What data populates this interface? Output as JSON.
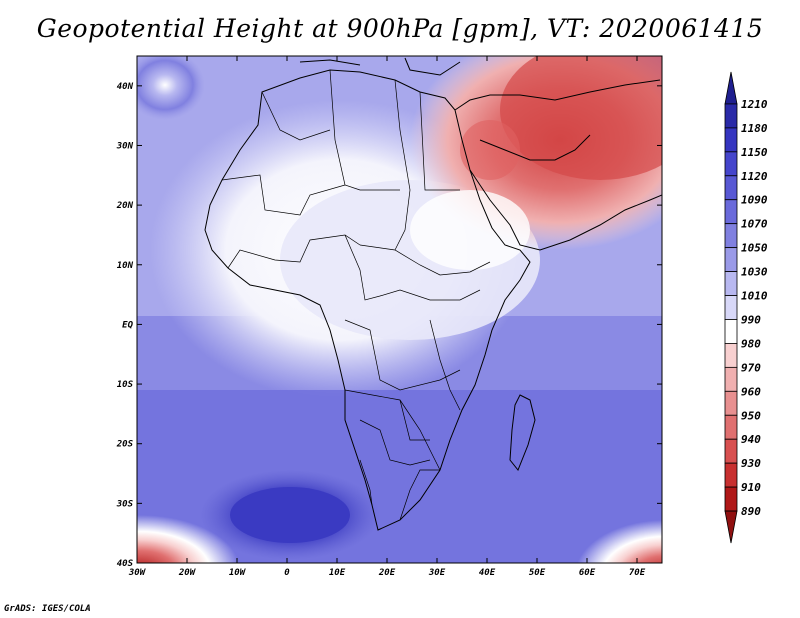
{
  "title": "Geopotential Height at 900hPa [gpm], VT: 2020061415",
  "credit": "GrADS: IGES/COLA",
  "map": {
    "lat_labels": [
      "40N",
      "30N",
      "20N",
      "10N",
      "EQ",
      "10S",
      "20S",
      "30S",
      "40S"
    ],
    "lon_labels": [
      "30W",
      "20W",
      "10W",
      "0",
      "10E",
      "20E",
      "30E",
      "40E",
      "50E",
      "60E",
      "70E"
    ],
    "lat_range": [
      -40,
      45
    ],
    "lon_range": [
      -30,
      75
    ]
  },
  "colorbar": {
    "labels": [
      "1210",
      "1180",
      "1150",
      "1120",
      "1090",
      "1070",
      "1050",
      "1030",
      "1010",
      "990",
      "980",
      "970",
      "960",
      "950",
      "940",
      "930",
      "910",
      "890"
    ],
    "colors": [
      "#1f1f8f",
      "#2a2aa8",
      "#3535c0",
      "#4545cc",
      "#5858d4",
      "#6a6adb",
      "#8080e0",
      "#9a9ae8",
      "#b8b8f0",
      "#d8d8f8",
      "#ffffff",
      "#f8d0d0",
      "#f0b0b0",
      "#e89090",
      "#e07070",
      "#d85050",
      "#c83030",
      "#b01818",
      "#901010"
    ]
  }
}
